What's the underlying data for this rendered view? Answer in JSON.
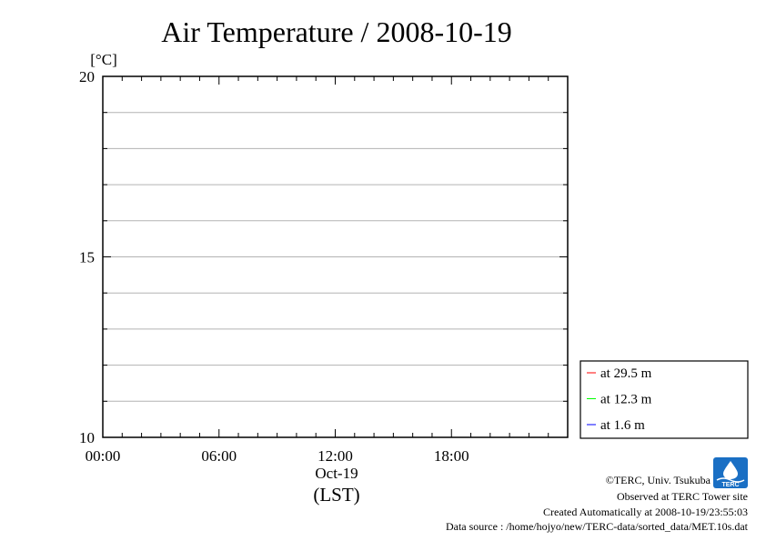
{
  "chart_data": {
    "type": "line",
    "title": "Air Temperature / 2008-10-19",
    "ylabel": "[°C]",
    "ylim": [
      10,
      20
    ],
    "y_ticks": [
      "10",
      "15",
      "20"
    ],
    "xlim": [
      "00:00",
      "24:00"
    ],
    "x_ticks": [
      "00:00",
      "06:00",
      "12:00",
      "18:00"
    ],
    "x_date_label": "Oct-19",
    "x_unit_label": "(LST)",
    "grid": true,
    "legend_position": "right",
    "series": [
      {
        "name": "at 29.5 m",
        "color": "#ff0000",
        "values": []
      },
      {
        "name": "at 12.3 m",
        "color": "#00ff00",
        "values": []
      },
      {
        "name": "at 1.6 m",
        "color": "#0000ff",
        "values": []
      }
    ]
  },
  "footer": {
    "copyright": "©TERC, Univ. Tsukuba",
    "observed": "Observed at TERC Tower site",
    "created": "Created Automatically at 2008-10-19/23:55:03",
    "source": "Data source : /home/hojyo/new/TERC-data/sorted_data/MET.10s.dat"
  },
  "logo": {
    "text": "TERC",
    "color": "#1a6fc4"
  }
}
